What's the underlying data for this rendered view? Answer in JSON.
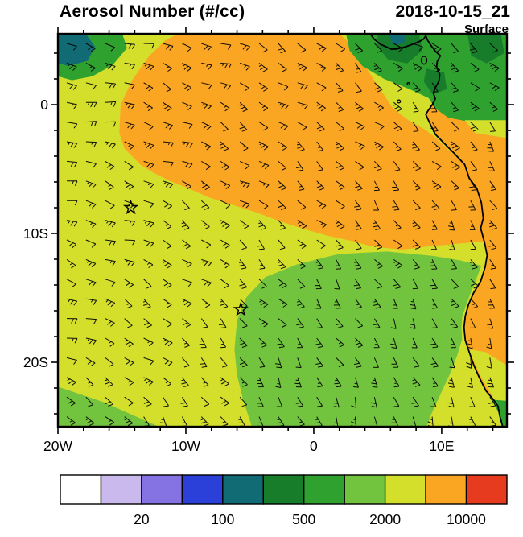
{
  "header": {
    "title": "Aerosol Number (#/cc)",
    "datetime": "2018-10-15_21",
    "level_label": "Surface"
  },
  "axes": {
    "x_ticks": [
      {
        "label": "20W",
        "lon": -20
      },
      {
        "label": "10W",
        "lon": -10
      },
      {
        "label": "0",
        "lon": 0
      },
      {
        "label": "10E",
        "lon": 10
      }
    ],
    "y_ticks": [
      {
        "label": "0",
        "lat": 0
      },
      {
        "label": "10S",
        "lat": -10
      },
      {
        "label": "20S",
        "lat": -20
      }
    ]
  },
  "colorbar": {
    "colors": [
      "#ffffff",
      "#c9b9ec",
      "#8673e3",
      "#2b3fd9",
      "#116b74",
      "#177d2b",
      "#2ea12f",
      "#72c43e",
      "#d3df2b",
      "#fba622",
      "#e63b1f"
    ],
    "labels": [
      "20",
      "100",
      "500",
      "2000",
      "10000"
    ],
    "label_boundary_index": [
      2,
      4,
      6,
      8,
      10
    ]
  },
  "chart_data": {
    "type": "heatmap",
    "title": "Aerosol Number (#/cc)",
    "time": "2018-10-15_21",
    "level": "Surface",
    "units": "#/cc",
    "lon_range": [
      -20,
      15.1
    ],
    "lat_range": [
      -25,
      5.5
    ],
    "levels": [
      10,
      20,
      50,
      100,
      200,
      500,
      1000,
      2000,
      5000,
      10000
    ],
    "palette": [
      "#ffffff",
      "#c9b9ec",
      "#8673e3",
      "#2b3fd9",
      "#116b74",
      "#177d2b",
      "#2ea12f",
      "#72c43e",
      "#d3df2b",
      "#fba622",
      "#e63b1f"
    ],
    "background_value_range": "2000-5000",
    "background_color": "#d3df2b",
    "land_color": "#fba622",
    "regions": [
      {
        "name": "topleft-green",
        "value_range": "500-1000",
        "color": "#2ea12f",
        "polygon": [
          [
            -20,
            5.6
          ],
          [
            -15.0,
            5.6
          ],
          [
            -14.6,
            4.4
          ],
          [
            -15.7,
            3.1
          ],
          [
            -17.3,
            2.2
          ],
          [
            -18.9,
            1.9
          ],
          [
            -20,
            2.2
          ]
        ]
      },
      {
        "name": "topleft-teal",
        "value_range": "100-200",
        "color": "#116b74",
        "polygon": [
          [
            -20,
            5.6
          ],
          [
            -17.9,
            5.6
          ],
          [
            -17.1,
            4.5
          ],
          [
            -17.7,
            3.4
          ],
          [
            -19.2,
            3.0
          ],
          [
            -20,
            3.25
          ]
        ]
      },
      {
        "name": "orange-plume",
        "value_range": "5000-10000",
        "color": "#fba622",
        "polygon": [
          [
            -10.4,
            5.6
          ],
          [
            1.9,
            5.6
          ],
          [
            3.0,
            4.6
          ],
          [
            4.0,
            3.0
          ],
          [
            5.2,
            1.2
          ],
          [
            6.2,
            -0.3
          ],
          [
            7.4,
            -1.2
          ],
          [
            8.8,
            -2.0
          ],
          [
            9.6,
            -2.6
          ],
          [
            10.2,
            -3.2
          ],
          [
            11.0,
            -3.9
          ],
          [
            11.8,
            -4.7
          ],
          [
            12.15,
            -5.7
          ],
          [
            12.75,
            -6.5
          ],
          [
            13.1,
            -7.6
          ],
          [
            13.25,
            -8.8
          ],
          [
            13.05,
            -9.6
          ],
          [
            13.35,
            -10.6
          ],
          [
            11.2,
            -10.8
          ],
          [
            9.0,
            -11.0
          ],
          [
            6.9,
            -11.25
          ],
          [
            4.5,
            -11.0
          ],
          [
            3.1,
            -10.6
          ],
          [
            1.2,
            -10.2
          ],
          [
            -0.6,
            -9.7
          ],
          [
            -2.5,
            -9.1
          ],
          [
            -4.4,
            -8.4
          ],
          [
            -6.3,
            -7.8
          ],
          [
            -8.2,
            -7.2
          ],
          [
            -9.8,
            -6.5
          ],
          [
            -11.3,
            -5.9
          ],
          [
            -12.5,
            -5.3
          ],
          [
            -13.5,
            -4.7
          ],
          [
            -14.8,
            -3.4
          ],
          [
            -15.2,
            -2.2
          ],
          [
            -15.1,
            0.0
          ],
          [
            -14.2,
            1.9
          ],
          [
            -12.9,
            3.75
          ],
          [
            -11.6,
            5.0
          ]
        ]
      },
      {
        "name": "topright-green",
        "value_range": "500-1000",
        "color": "#2ea12f",
        "polygon": [
          [
            2.5,
            5.6
          ],
          [
            15.2,
            5.6
          ],
          [
            15.2,
            -1.3
          ],
          [
            12.5,
            -1.4
          ],
          [
            10.5,
            -1.0
          ],
          [
            9.5,
            -0.3
          ],
          [
            9.0,
            0.5
          ],
          [
            7.5,
            1.2
          ],
          [
            5.5,
            2.0
          ],
          [
            3.8,
            3.0
          ],
          [
            2.8,
            4.2
          ]
        ]
      },
      {
        "name": "topright-darkgreen-1",
        "value_range": "200-500",
        "color": "#177d2b",
        "polygon": [
          [
            5.0,
            5.6
          ],
          [
            8.2,
            5.6
          ],
          [
            8.5,
            4.2
          ],
          [
            7.3,
            3.2
          ],
          [
            5.8,
            3.5
          ],
          [
            5.0,
            4.5
          ]
        ]
      },
      {
        "name": "topright-darkgreen-2",
        "value_range": "200-500",
        "color": "#177d2b",
        "polygon": [
          [
            12.0,
            5.6
          ],
          [
            14.6,
            5.6
          ],
          [
            14.9,
            4.0
          ],
          [
            13.5,
            3.2
          ],
          [
            12.3,
            3.8
          ]
        ]
      },
      {
        "name": "topright-teal-spot",
        "value_range": "100-200",
        "color": "#116b74",
        "polygon": [
          [
            5.8,
            5.6
          ],
          [
            7.1,
            5.6
          ],
          [
            7.1,
            4.8
          ],
          [
            6.2,
            4.6
          ]
        ]
      },
      {
        "name": "coastal-darkgreen",
        "value_range": "200-500",
        "color": "#177d2b",
        "polygon": [
          [
            8.8,
            2.8
          ],
          [
            10.2,
            2.5
          ],
          [
            10.4,
            1.2
          ],
          [
            9.3,
            0.8
          ],
          [
            8.6,
            1.8
          ]
        ]
      },
      {
        "name": "land-yellowgreen-band",
        "value_range": "2000-5000",
        "color": "#d3df2b",
        "polygon": [
          [
            11.8,
            -1.2
          ],
          [
            15.2,
            -1.2
          ],
          [
            15.2,
            -2.6
          ],
          [
            12.6,
            -2.2
          ]
        ]
      },
      {
        "name": "green-blob-south",
        "value_range": "1000-2000",
        "color": "#72c43e",
        "polygon": [
          [
            -6.0,
            -16.75
          ],
          [
            -5.3,
            -15.0
          ],
          [
            -3.8,
            -13.4
          ],
          [
            -1.3,
            -12.4
          ],
          [
            1.9,
            -11.6
          ],
          [
            5.7,
            -11.4
          ],
          [
            9.4,
            -11.75
          ],
          [
            11.5,
            -12.1
          ],
          [
            13.1,
            -12.5
          ],
          [
            12.6,
            -13.8
          ],
          [
            12.2,
            -14.8
          ],
          [
            11.9,
            -15.6
          ],
          [
            11.6,
            -16.5
          ],
          [
            11.55,
            -17.3
          ],
          [
            11.6,
            -18.2
          ],
          [
            11.2,
            -19.5
          ],
          [
            10.6,
            -21.0
          ],
          [
            9.9,
            -22.5
          ],
          [
            9.2,
            -24.0
          ],
          [
            8.8,
            -25.1
          ],
          [
            -4.8,
            -25.1
          ],
          [
            -5.5,
            -23.0
          ],
          [
            -6.0,
            -21.0
          ],
          [
            -6.2,
            -19.0
          ]
        ]
      },
      {
        "name": "bottomleft-green",
        "value_range": "1000-2000",
        "color": "#72c43e",
        "polygon": [
          [
            -20,
            -21.9
          ],
          [
            -16.4,
            -23.1
          ],
          [
            -11.9,
            -25.1
          ],
          [
            -20,
            -25.1
          ]
        ]
      },
      {
        "name": "bottomright-land-yellowgreen",
        "value_range": "2000-5000",
        "color": "#d3df2b",
        "polygon": [
          [
            12.1,
            -19.0
          ],
          [
            13.0,
            -21.0
          ],
          [
            14.05,
            -22.8
          ],
          [
            14.6,
            -24.0
          ],
          [
            14.85,
            -25.1
          ],
          [
            15.2,
            -25.1
          ],
          [
            15.2,
            -20.3
          ],
          [
            13.4,
            -19.2
          ]
        ]
      },
      {
        "name": "bottomright-land-green",
        "value_range": "500-1000",
        "color": "#2ea12f",
        "polygon": [
          [
            13.9,
            -22.9
          ],
          [
            14.55,
            -24.1
          ],
          [
            14.85,
            -25.1
          ],
          [
            15.2,
            -25.1
          ],
          [
            15.2,
            -23.0
          ]
        ]
      }
    ],
    "coastline": [
      [
        4.35,
        5.6
      ],
      [
        4.7,
        5.1
      ],
      [
        5.2,
        4.7
      ],
      [
        5.75,
        4.45
      ],
      [
        6.1,
        4.3
      ],
      [
        6.6,
        4.35
      ],
      [
        7.2,
        4.5
      ],
      [
        7.9,
        4.75
      ],
      [
        8.35,
        4.95
      ],
      [
        8.6,
        5.1
      ],
      [
        8.75,
        5.35
      ],
      [
        8.9,
        5.0
      ],
      [
        9.2,
        4.55
      ],
      [
        9.55,
        4.1
      ],
      [
        9.9,
        3.8
      ],
      [
        9.65,
        3.35
      ],
      [
        9.6,
        2.9
      ],
      [
        9.85,
        2.35
      ],
      [
        9.8,
        1.85
      ],
      [
        9.5,
        1.3
      ],
      [
        9.35,
        0.9
      ],
      [
        9.5,
        0.45
      ],
      [
        9.3,
        0.05
      ],
      [
        8.95,
        -0.45
      ],
      [
        8.75,
        -0.75
      ],
      [
        9.1,
        -1.5
      ],
      [
        9.5,
        -2.3
      ],
      [
        10.2,
        -3.0
      ],
      [
        11.0,
        -3.8
      ],
      [
        11.8,
        -4.65
      ],
      [
        12.15,
        -5.7
      ],
      [
        12.75,
        -6.5
      ],
      [
        13.1,
        -7.6
      ],
      [
        13.25,
        -8.8
      ],
      [
        13.05,
        -9.6
      ],
      [
        13.35,
        -10.7
      ],
      [
        13.55,
        -11.7
      ],
      [
        13.4,
        -12.6
      ],
      [
        13.05,
        -13.7
      ],
      [
        12.5,
        -14.6
      ],
      [
        12.1,
        -15.5
      ],
      [
        11.85,
        -16.4
      ],
      [
        11.75,
        -17.3
      ],
      [
        11.85,
        -18.3
      ],
      [
        12.15,
        -19.2
      ],
      [
        12.5,
        -20.2
      ],
      [
        12.95,
        -21.2
      ],
      [
        13.45,
        -22.2
      ],
      [
        14.05,
        -22.9
      ],
      [
        14.4,
        -23.4
      ],
      [
        14.55,
        -24.2
      ],
      [
        14.8,
        -25.1
      ]
    ],
    "islands": [
      {
        "name": "bioko",
        "lon": 8.62,
        "lat": 3.45,
        "rx_deg": 0.22,
        "ry_deg": 0.3,
        "fill": "#2ea12f"
      },
      {
        "name": "principe",
        "lon": 7.4,
        "lat": 1.62,
        "rx_deg": 0.09,
        "ry_deg": 0.09
      },
      {
        "name": "sao-tome",
        "lon": 6.65,
        "lat": 0.25,
        "rx_deg": 0.12,
        "ry_deg": 0.12
      }
    ],
    "markers": [
      {
        "name": "station-marker-1",
        "lon": -14.3,
        "lat": -8.0
      },
      {
        "name": "station-marker-2",
        "lon": -5.7,
        "lat": -15.9
      }
    ],
    "wind": {
      "representation": "wind barbs",
      "flow": "anticyclonic southern-hemisphere circulation: easterly in north, southeasterly in southwest, southerly along the African coast",
      "center_lon": -25,
      "center_lat": -35
    }
  }
}
